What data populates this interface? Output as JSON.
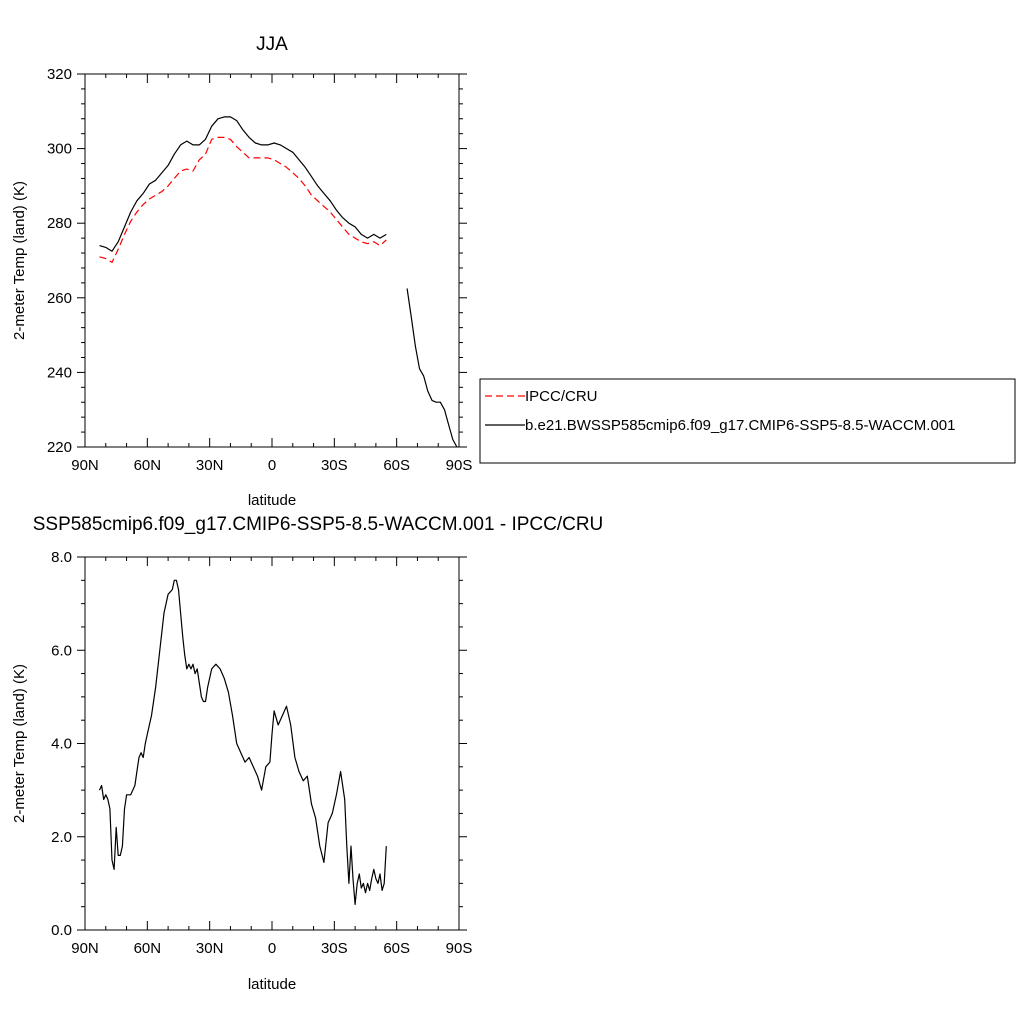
{
  "chart_data": [
    {
      "type": "line",
      "title": "JJA",
      "xlabel": "latitude",
      "ylabel": "2-meter Temp (land) (K)",
      "xlim": [
        90,
        -90
      ],
      "ylim": [
        220,
        320
      ],
      "xticks": [
        90,
        60,
        30,
        0,
        -30,
        -60,
        -90
      ],
      "xtick_labels": [
        "90N",
        "60N",
        "30N",
        "0",
        "30S",
        "60S",
        "90S"
      ],
      "yticks": [
        220,
        240,
        260,
        280,
        300,
        320
      ],
      "ytick_labels": [
        "220",
        "240",
        "260",
        "280",
        "300",
        "320"
      ],
      "grid": false,
      "legend": "right",
      "series": [
        {
          "name": "IPCC/CRU",
          "color": "#ff0000",
          "dash": "dashed",
          "x": [
            83,
            80,
            77,
            74,
            71,
            68,
            65,
            62,
            59,
            56,
            53,
            50,
            47,
            44,
            41,
            38,
            35,
            32,
            29,
            26,
            23,
            20,
            17,
            14,
            11,
            8,
            5,
            2,
            -1,
            -4,
            -7,
            -10,
            -13,
            -16,
            -19,
            -22,
            -25,
            -28,
            -31,
            -34,
            -37,
            -40,
            -43,
            -46,
            -49,
            -52,
            -55
          ],
          "values": [
            271,
            270.5,
            269.5,
            273,
            277,
            280.5,
            283,
            285,
            286.5,
            287.5,
            288.5,
            290,
            292,
            294,
            294.5,
            294,
            297,
            298.5,
            302.5,
            303,
            303,
            302.5,
            300.5,
            299,
            297.5,
            297.5,
            297.5,
            297.5,
            297,
            296,
            295,
            293.5,
            292,
            290,
            287.5,
            286,
            284.5,
            283,
            281,
            279,
            277,
            276,
            275,
            274.5,
            275,
            274,
            275.5
          ]
        },
        {
          "name": "b.e21.BWSSP585cmip6.f09_g17.CMIP6-SSP5-8.5-WACCM.001",
          "color": "#000000",
          "dash": "solid",
          "x": [
            83,
            80,
            77,
            74,
            71,
            68,
            65,
            62,
            59,
            56,
            53,
            50,
            47,
            44,
            41,
            38,
            35,
            32,
            29,
            26,
            23,
            20,
            17,
            14,
            11,
            8,
            5,
            2,
            -1,
            -4,
            -7,
            -10,
            -13,
            -16,
            -19,
            -22,
            -25,
            -28,
            -31,
            -34,
            -37,
            -40,
            -43,
            -46,
            -49,
            -52,
            -55,
            null,
            -65,
            -67,
            -69,
            -71,
            -73,
            -75,
            -77,
            -79,
            -81,
            -83,
            -85,
            -87,
            -89
          ],
          "values": [
            274,
            273.5,
            272.5,
            275,
            279,
            283,
            286,
            288,
            290.5,
            291.5,
            293.5,
            295.5,
            298.5,
            301,
            302,
            301,
            301,
            302.5,
            306,
            308,
            308.5,
            308.5,
            307.5,
            305,
            303,
            301.5,
            301,
            301,
            301.5,
            301,
            300,
            299,
            297,
            295,
            292.5,
            290,
            288,
            286,
            283.5,
            281.5,
            280,
            279,
            277,
            276,
            277,
            276,
            277,
            null,
            262.5,
            255,
            247,
            241,
            239,
            235,
            232.5,
            232,
            232,
            230,
            226,
            222,
            220
          ]
        }
      ]
    },
    {
      "type": "line",
      "title": "SSP585cmip6.f09_g17.CMIP6-SSP5-8.5-WACCM.001 - IPCC/CRU",
      "xlabel": "latitude",
      "ylabel": "2-meter Temp (land) (K)",
      "xlim": [
        90,
        -90
      ],
      "ylim": [
        0,
        8
      ],
      "xticks": [
        90,
        60,
        30,
        0,
        -30,
        -60,
        -90
      ],
      "xtick_labels": [
        "90N",
        "60N",
        "30N",
        "0",
        "30S",
        "60S",
        "90S"
      ],
      "yticks": [
        0,
        2,
        4,
        6,
        8
      ],
      "ytick_labels": [
        "0.0",
        "2.0",
        "4.0",
        "6.0",
        "8.0"
      ],
      "grid": false,
      "series": [
        {
          "color": "#000000",
          "dash": "solid",
          "x": [
            83,
            82,
            81,
            80,
            79,
            78,
            77,
            76,
            75,
            74,
            73,
            72,
            71,
            70,
            69,
            68,
            67,
            66,
            65,
            64,
            63,
            62,
            61,
            60,
            58,
            56,
            54,
            52,
            50,
            48,
            47,
            46,
            45,
            44,
            43,
            42,
            41,
            40,
            39,
            38,
            37,
            36,
            35,
            34,
            33,
            32,
            31,
            29,
            27,
            25,
            23,
            21,
            19,
            18,
            17,
            15,
            13,
            11,
            9,
            7,
            5,
            3,
            1,
            0,
            -1,
            -3,
            -5,
            -7,
            -9,
            -11,
            -13,
            -15,
            -17,
            -19,
            -21,
            -23,
            -25,
            -27,
            -29,
            -31,
            -33,
            -35,
            -36,
            -37,
            -38,
            -39,
            -40,
            -41,
            -42,
            -43,
            -44,
            -45,
            -46,
            -47,
            -48,
            -49,
            -50,
            -51,
            -52,
            -53,
            -54,
            -55
          ],
          "values": [
            3.0,
            3.1,
            2.8,
            2.9,
            2.8,
            2.6,
            1.5,
            1.3,
            2.2,
            1.6,
            1.6,
            1.8,
            2.6,
            2.9,
            2.9,
            2.9,
            3.0,
            3.1,
            3.4,
            3.7,
            3.8,
            3.7,
            4.0,
            4.2,
            4.6,
            5.2,
            6.0,
            6.8,
            7.2,
            7.3,
            7.5,
            7.5,
            7.3,
            6.8,
            6.3,
            5.9,
            5.6,
            5.7,
            5.6,
            5.7,
            5.5,
            5.6,
            5.3,
            5.0,
            4.9,
            4.9,
            5.2,
            5.6,
            5.7,
            5.6,
            5.4,
            5.1,
            4.6,
            4.3,
            4.0,
            3.8,
            3.6,
            3.7,
            3.5,
            3.3,
            3.0,
            3.5,
            3.6,
            4.2,
            4.7,
            4.4,
            4.6,
            4.8,
            4.4,
            3.7,
            3.4,
            3.2,
            3.3,
            2.7,
            2.4,
            1.8,
            1.45,
            2.3,
            2.5,
            2.9,
            3.4,
            2.8,
            1.8,
            1.0,
            1.8,
            1.1,
            0.55,
            1.0,
            1.2,
            0.9,
            1.0,
            0.8,
            1.0,
            0.85,
            1.1,
            1.3,
            1.1,
            1.0,
            1.2,
            0.85,
            1.0,
            1.8
          ]
        }
      ]
    }
  ]
}
